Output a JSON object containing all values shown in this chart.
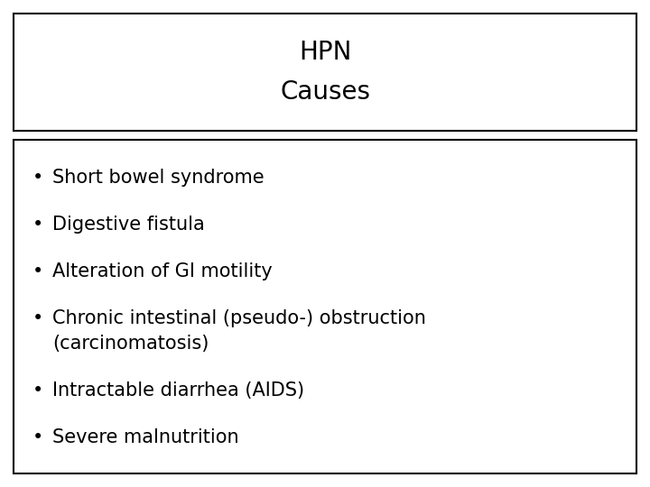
{
  "title_line1": "HPN",
  "title_line2": "Causes",
  "bullet_items": [
    [
      "Short bowel syndrome"
    ],
    [
      "Digestive fistula"
    ],
    [
      "Alteration of GI motility"
    ],
    [
      "Chronic intestinal (pseudo-) obstruction",
      "(carcinomatosis)"
    ],
    [
      "Intractable diarrhea (AIDS)"
    ],
    [
      "Severe malnutrition"
    ]
  ],
  "bg_color": "#ffffff",
  "border_color": "#000000",
  "text_color": "#000000",
  "title_fontsize": 20,
  "body_fontsize": 15,
  "bullet_char": "•",
  "fig_width": 7.2,
  "fig_height": 5.4,
  "dpi": 100
}
